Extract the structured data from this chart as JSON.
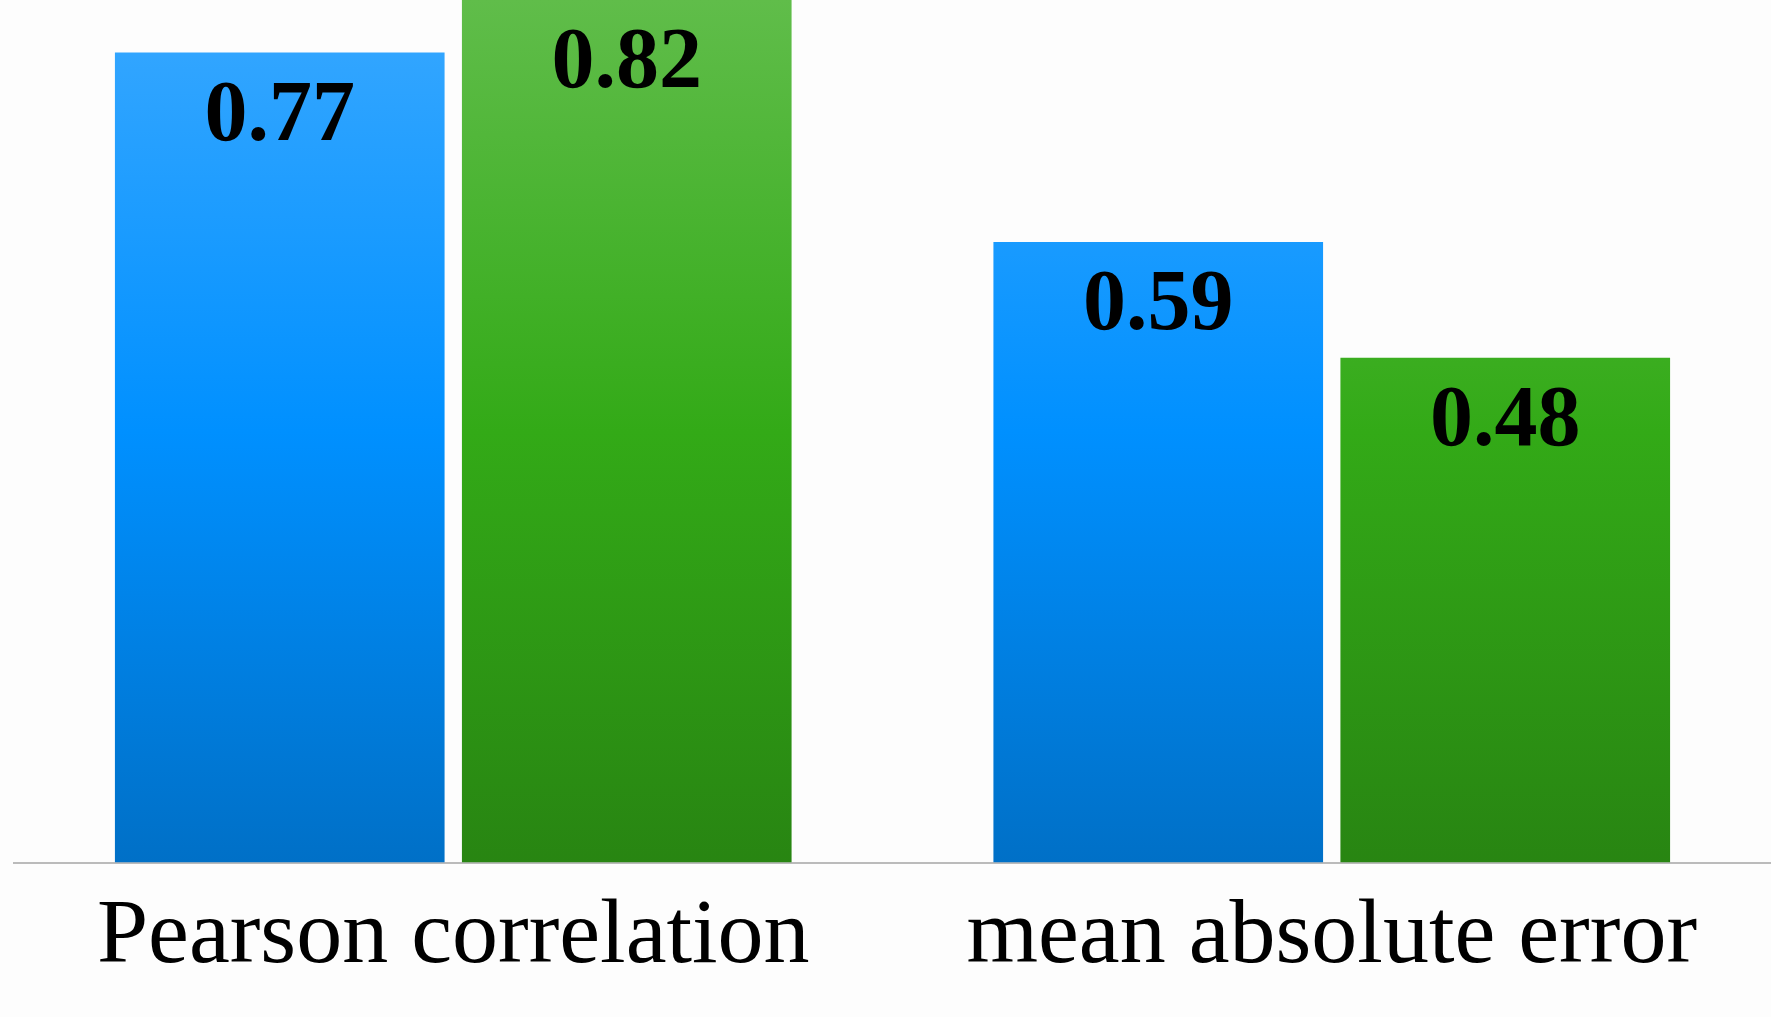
{
  "chart_data": {
    "type": "bar",
    "categories": [
      "Pearson correlation",
      "mean absolute error"
    ],
    "series": [
      {
        "color": "#0090ff",
        "values": [
          0.77,
          0.59
        ]
      },
      {
        "color": "#33aa17",
        "values": [
          0.82,
          0.48
        ]
      }
    ],
    "data_labels": true,
    "grid": false,
    "legend": false,
    "tick_labels": "x"
  }
}
